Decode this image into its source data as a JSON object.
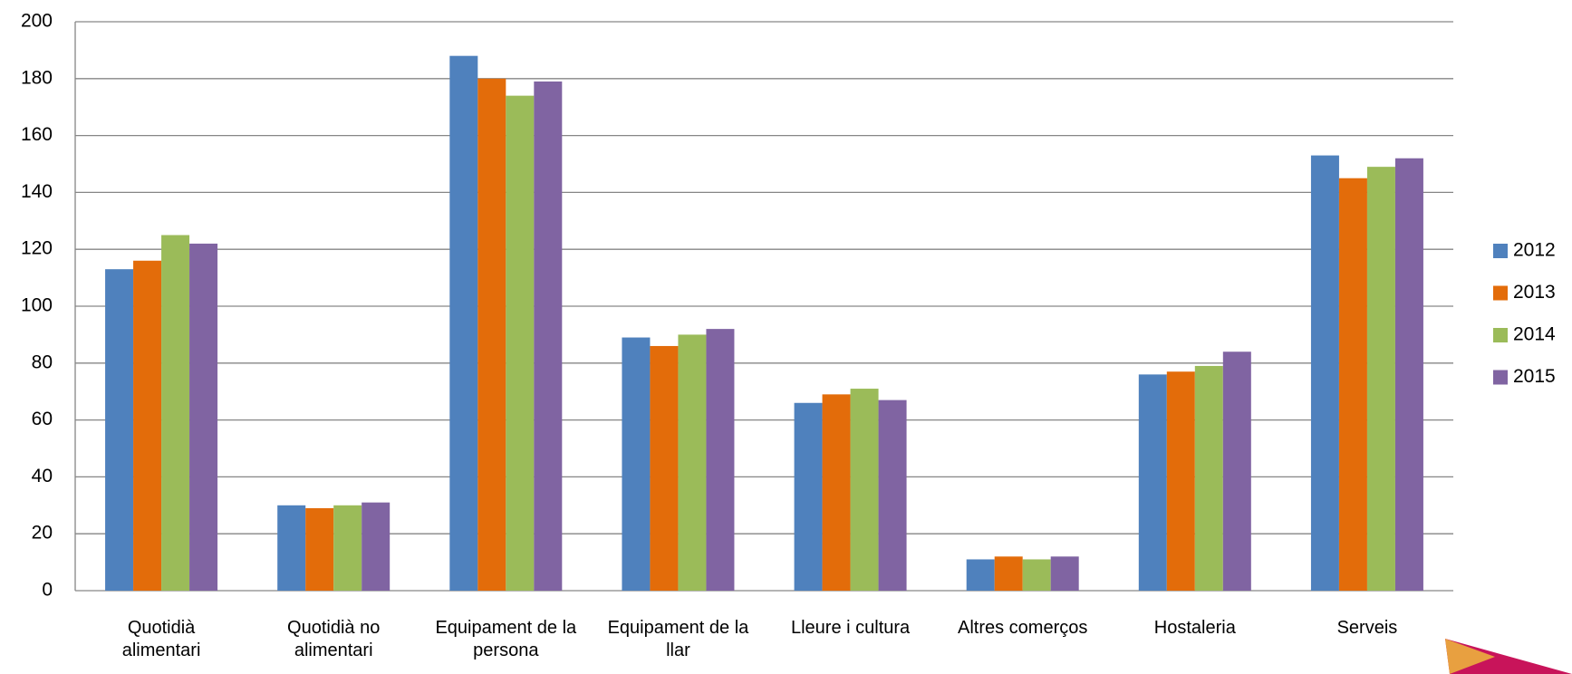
{
  "chart_data": {
    "type": "bar",
    "categories": [
      "Quotidià alimentari",
      "Quotidià no alimentari",
      "Equipament de la persona",
      "Equipament de la llar",
      "Lleure i cultura",
      "Altres comerços",
      "Hostaleria",
      "Serveis"
    ],
    "series": [
      {
        "name": "2012",
        "color": "#4f81bd",
        "values": [
          113,
          30,
          188,
          89,
          66,
          11,
          76,
          153
        ]
      },
      {
        "name": "2013",
        "color": "#e36c0a",
        "values": [
          116,
          29,
          180,
          86,
          69,
          12,
          77,
          145
        ]
      },
      {
        "name": "2014",
        "color": "#9bbb59",
        "values": [
          125,
          30,
          174,
          90,
          71,
          11,
          79,
          149
        ]
      },
      {
        "name": "2015",
        "color": "#8064a2",
        "values": [
          122,
          31,
          179,
          92,
          67,
          12,
          84,
          152
        ]
      }
    ],
    "ylim": [
      0,
      200
    ],
    "yticks": [
      0,
      20,
      40,
      60,
      80,
      100,
      120,
      140,
      160,
      180,
      200
    ],
    "grid": true,
    "legend": "right"
  }
}
